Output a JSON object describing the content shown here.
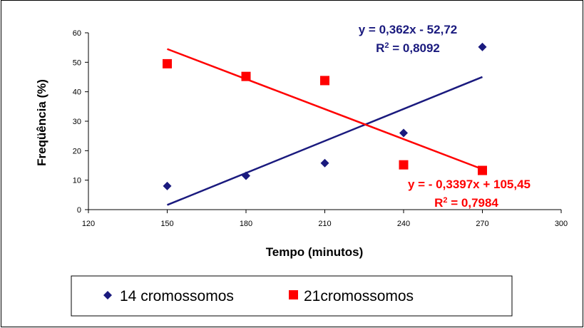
{
  "chart_data": {
    "type": "scatter",
    "xlabel": "Tempo (minutos)",
    "ylabel": "Freqüência (%)",
    "xlim": [
      120,
      300
    ],
    "ylim": [
      0,
      60
    ],
    "x_ticks": [
      120,
      150,
      180,
      210,
      240,
      270,
      300
    ],
    "y_ticks": [
      0,
      10,
      20,
      30,
      40,
      50,
      60
    ],
    "grid": false,
    "legend_position": "bottom",
    "series": [
      {
        "name": "14 cromossomos",
        "color": "#1a1a7e",
        "marker": "diamond",
        "x": [
          150,
          180,
          210,
          240,
          270
        ],
        "y": [
          8,
          11.5,
          15.8,
          26,
          55.2
        ],
        "trendline": {
          "slope": 0.362,
          "intercept": -52.72,
          "x_range": [
            150,
            270
          ]
        },
        "equation": {
          "prefix": "y = 0,362x - 52,72",
          "r2_value": " = 0,8092"
        }
      },
      {
        "name": "21cromossomos",
        "color": "#ff0000",
        "marker": "square",
        "x": [
          150,
          180,
          210,
          240,
          270
        ],
        "y": [
          49.5,
          45.2,
          43.8,
          15.2,
          13.3
        ],
        "trendline": {
          "slope": -0.3397,
          "intercept": 105.45,
          "x_range": [
            150,
            270
          ]
        },
        "equation": {
          "prefix": "y = - 0,3397x + 105,45",
          "r2_value": " = 0,7984"
        }
      }
    ]
  }
}
